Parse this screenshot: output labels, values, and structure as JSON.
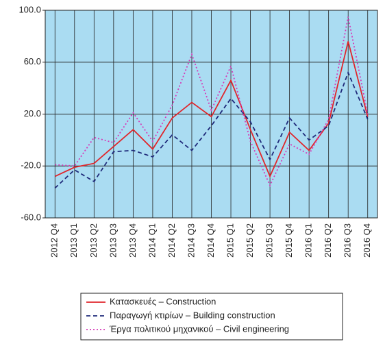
{
  "chart_data": {
    "type": "line",
    "categories": [
      "2012 Q4",
      "2013 Q1",
      "2013 Q2",
      "2013 Q3",
      "2013 Q4",
      "2014 Q1",
      "2014 Q2",
      "2014 Q3",
      "2014 Q4",
      "2015 Q1",
      "2015 Q2",
      "2015 Q3",
      "2015 Q4",
      "2016 Q1",
      "2016 Q2",
      "2016 Q3",
      "2016 Q4"
    ],
    "series": [
      {
        "name": "Κατασκευές – Construction",
        "color": "#e0262b",
        "dash": "solid",
        "values": [
          -28,
          -21,
          -18,
          -5,
          8,
          -7,
          17,
          29,
          18,
          46,
          8,
          -28,
          6,
          -8,
          13,
          76,
          18
        ]
      },
      {
        "name": "Παραγωγή κτιρίων – Building construction",
        "color": "#1f2a7a",
        "dash": "dashed",
        "values": [
          -37,
          -23,
          -32,
          -9,
          -8,
          -13,
          4,
          -8,
          11,
          32,
          14,
          -15,
          17,
          0,
          11,
          52,
          16
        ]
      },
      {
        "name": "Έργα πολιτικού μηχανικού – Civil engineering",
        "color": "#d63ab8",
        "dash": "dotted",
        "values": [
          -19,
          -20,
          2,
          -2,
          21,
          -1,
          27,
          66,
          23,
          57,
          -1,
          -35,
          -3,
          -11,
          16,
          95,
          20
        ]
      }
    ],
    "ylim": [
      -60,
      100
    ],
    "yticks": [
      {
        "value": -60,
        "label": "-60.0"
      },
      {
        "value": -20,
        "label": "-20.0"
      },
      {
        "value": 20,
        "label": "20.0"
      },
      {
        "value": 60,
        "label": "60.0"
      },
      {
        "value": 100,
        "label": "100.0"
      }
    ],
    "grid": true,
    "background": "#aadcf2",
    "legend": "bottom"
  }
}
